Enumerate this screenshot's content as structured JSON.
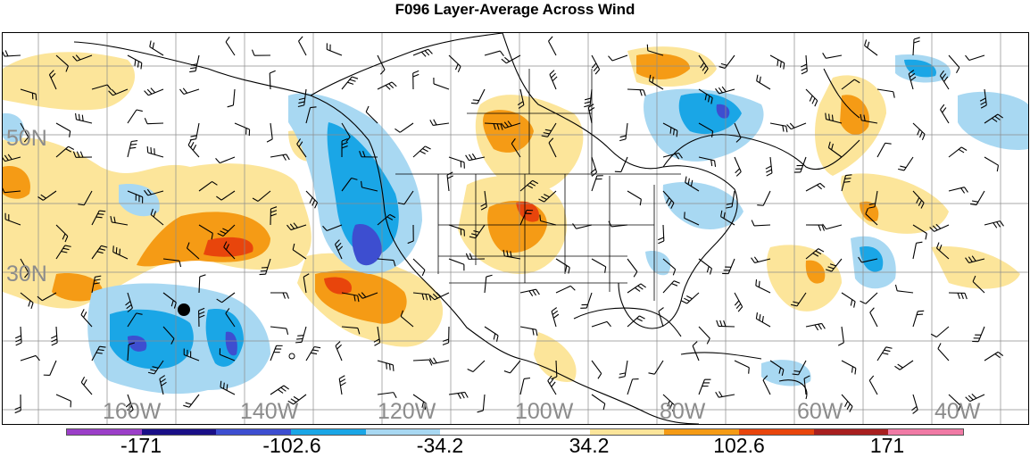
{
  "title": "F096 Layer-Average Across Wind",
  "lat_labels": [
    "50N",
    "30N"
  ],
  "lon_labels": [
    "160W",
    "140W",
    "120W",
    "100W",
    "80W",
    "60W",
    "40W"
  ],
  "colorbar": {
    "colors": [
      "#9b3fc8",
      "#1a0f87",
      "#3d4ed0",
      "#1aa6e6",
      "#a8d8f2",
      "#ffffff",
      "#ffffff",
      "#fce59a",
      "#f59b15",
      "#e8450c",
      "#a81f1f",
      "#f07aa5"
    ],
    "labels": [
      "-171",
      "-102.6",
      "-34.2",
      "34.2",
      "102.6",
      "171"
    ]
  },
  "fill_colors": {
    "light_blue": "#a8d8f2",
    "blue": "#1aa6e6",
    "dark_blue": "#3d4ed0",
    "light_yellow": "#fce59a",
    "orange": "#f59b15",
    "red": "#e8450c"
  },
  "marker": "black-dot"
}
